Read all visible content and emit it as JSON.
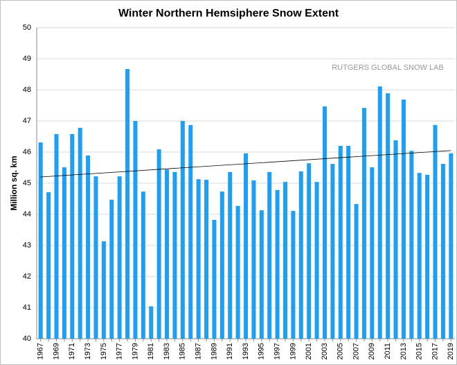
{
  "chart_data": {
    "type": "bar",
    "title": "Winter Northern Hemsiphere Snow Extent",
    "y_label": "Million sq. km",
    "annotation": "RUTGERS GLOBAL SNOW LAB",
    "categories": [
      "1967",
      null,
      "1969",
      null,
      "1971",
      null,
      "1973",
      null,
      "1975",
      null,
      "1977",
      null,
      "1979",
      null,
      "1981",
      null,
      "1983",
      null,
      "1985",
      null,
      "1987",
      null,
      "1989",
      null,
      "1991",
      null,
      "1993",
      null,
      "1995",
      null,
      "1997",
      null,
      "1999",
      null,
      "2001",
      null,
      "2003",
      null,
      "2005",
      null,
      "2007",
      null,
      "2009",
      null,
      "2011",
      null,
      "2013",
      null,
      "2015",
      null,
      "2017",
      null,
      "2019"
    ],
    "values": [
      46.31,
      44.71,
      46.58,
      45.51,
      46.58,
      46.78,
      45.89,
      45.22,
      43.13,
      44.47,
      45.22,
      48.67,
      47.0,
      44.73,
      41.04,
      46.09,
      45.44,
      45.36,
      47.0,
      46.87,
      45.13,
      45.11,
      43.82,
      44.73,
      45.36,
      44.27,
      45.96,
      45.09,
      44.13,
      45.36,
      44.78,
      45.04,
      44.11,
      45.38,
      45.64,
      45.04,
      47.47,
      45.62,
      46.2,
      46.2,
      44.33,
      47.42,
      45.51,
      48.11,
      47.89,
      46.38,
      47.69,
      46.04,
      45.33,
      45.27,
      46.87,
      45.62,
      45.96
    ],
    "color": "#1e9ff2",
    "trend": [
      45.2,
      46.05
    ],
    "trend_color": "#000000",
    "ylim": [
      40,
      50
    ],
    "yticks": [
      40,
      41,
      42,
      43,
      44,
      45,
      46,
      47,
      48,
      49,
      50
    ],
    "grid": true
  }
}
